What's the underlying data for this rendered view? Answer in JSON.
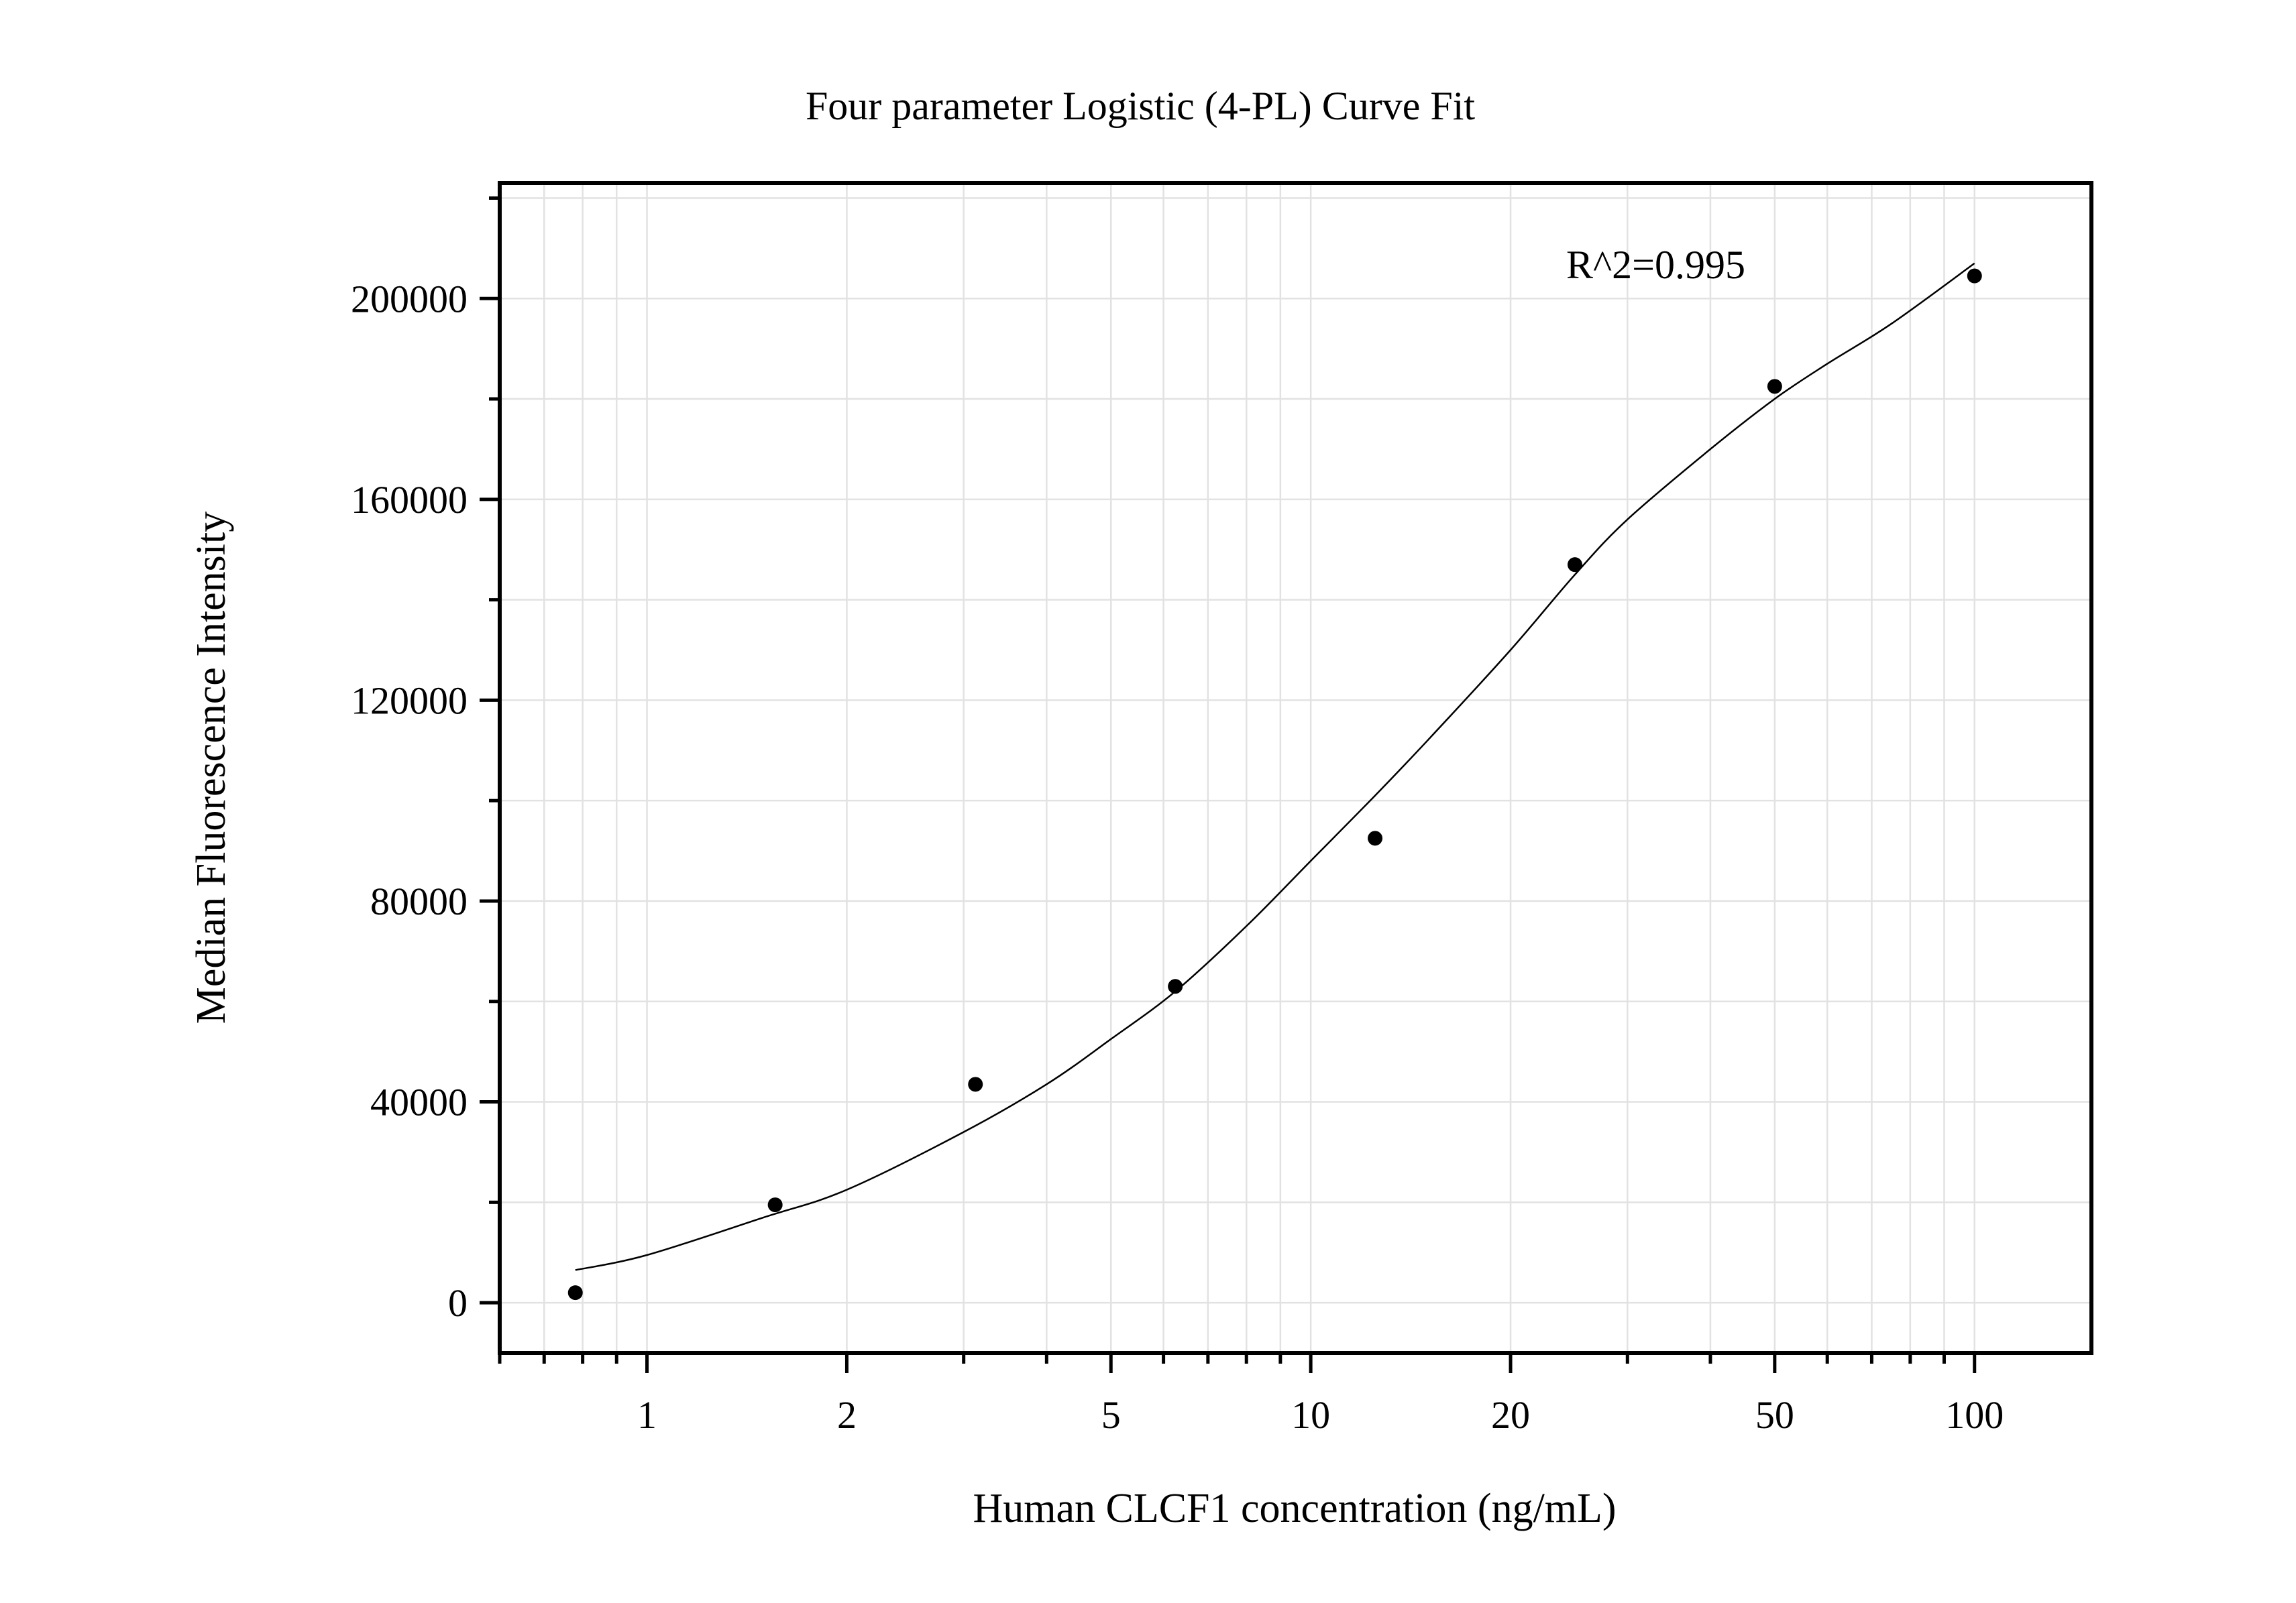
{
  "chart_data": {
    "type": "scatter",
    "title": "Four parameter Logistic (4-PL) Curve Fit",
    "xlabel": "Human CLCF1 concentration (ng/mL)",
    "ylabel": "Median Fluorescence Intensity",
    "x_scale": "log",
    "xlim": [
      0.6,
      150
    ],
    "ylim": [
      -10000,
      223000
    ],
    "x_ticks": [
      1,
      2,
      5,
      10,
      20,
      50,
      100
    ],
    "x_tick_labels": [
      "1",
      "2",
      "5",
      "10",
      "20",
      "50",
      "100"
    ],
    "y_ticks": [
      0,
      40000,
      80000,
      120000,
      160000,
      200000
    ],
    "y_tick_labels": [
      "0",
      "40000",
      "80000",
      "120000",
      "160000",
      "200000"
    ],
    "grid": true,
    "annotation": "R^2=0.995",
    "series": [
      {
        "x": [
          0.78,
          1.56,
          3.125,
          6.25,
          12.5,
          25,
          50,
          100
        ],
        "y": [
          2000,
          19500,
          43500,
          63000,
          92500,
          147000,
          182500,
          204500
        ]
      }
    ],
    "fit_curve": {
      "x": [
        0.78,
        1,
        1.5,
        2,
        3,
        4,
        5,
        6.25,
        8,
        10,
        12.5,
        15,
        20,
        25,
        30,
        40,
        50,
        60,
        75,
        100
      ],
      "y": [
        6500,
        9500,
        17000,
        22500,
        34000,
        43500,
        52500,
        62000,
        75000,
        88000,
        101000,
        112000,
        130000,
        145000,
        156000,
        170000,
        180000,
        187000,
        195000,
        207000
      ]
    }
  }
}
